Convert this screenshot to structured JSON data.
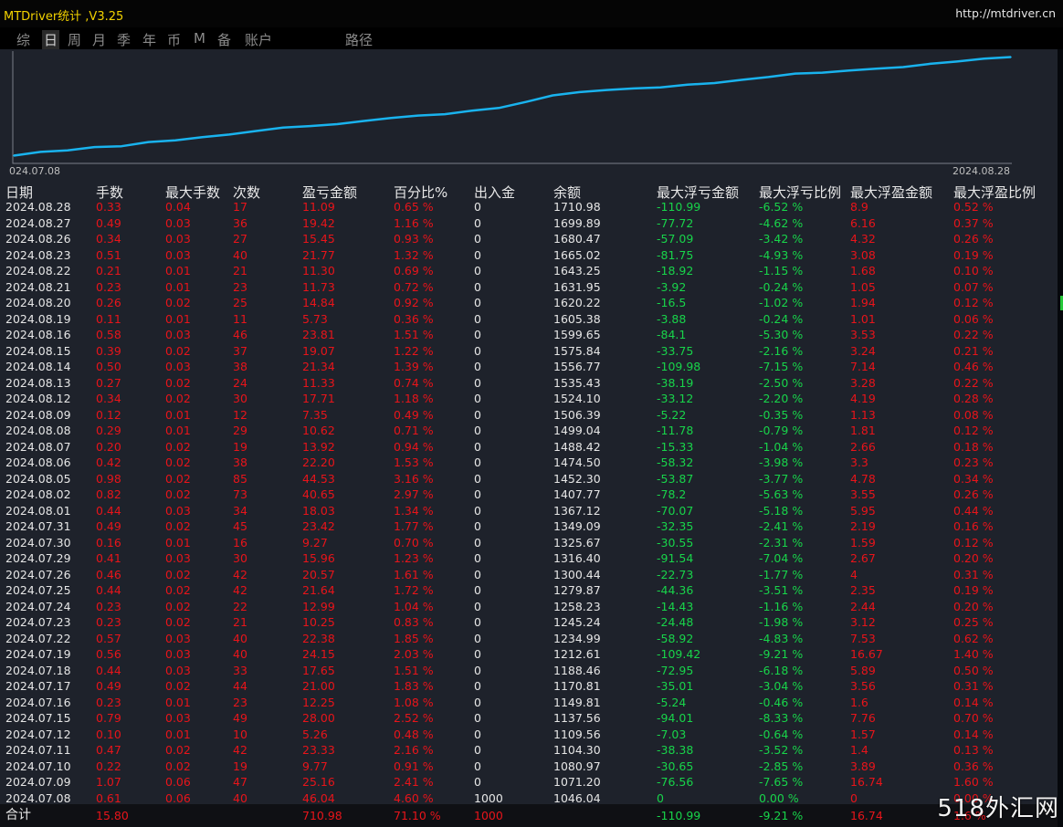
{
  "window": {
    "title": "MTDriver统计 ,V3.25",
    "site": "http://mtdriver.cn"
  },
  "tabs": [
    {
      "label": "综",
      "active": false
    },
    {
      "label": "日",
      "active": true
    },
    {
      "label": "周",
      "active": false
    },
    {
      "label": "月",
      "active": false
    },
    {
      "label": "季",
      "active": false
    },
    {
      "label": "年",
      "active": false
    },
    {
      "label": "币",
      "active": false
    },
    {
      "label": "M",
      "active": false
    },
    {
      "label": "备",
      "active": false
    },
    {
      "label": "账户",
      "active": false
    },
    {
      "label": "路径",
      "active": false
    }
  ],
  "chart_data": {
    "type": "line",
    "x_start_label": "024.07.08",
    "x_end_label": "2024.08.28",
    "line_color": "#19b3ee",
    "x": [
      "2024.07.08",
      "2024.07.09",
      "2024.07.10",
      "2024.07.11",
      "2024.07.12",
      "2024.07.15",
      "2024.07.16",
      "2024.07.17",
      "2024.07.18",
      "2024.07.19",
      "2024.07.22",
      "2024.07.23",
      "2024.07.24",
      "2024.07.25",
      "2024.07.26",
      "2024.07.29",
      "2024.07.30",
      "2024.07.31",
      "2024.08.01",
      "2024.08.02",
      "2024.08.05",
      "2024.08.06",
      "2024.08.07",
      "2024.08.08",
      "2024.08.09",
      "2024.08.12",
      "2024.08.13",
      "2024.08.14",
      "2024.08.15",
      "2024.08.16",
      "2024.08.19",
      "2024.08.20",
      "2024.08.21",
      "2024.08.22",
      "2024.08.23",
      "2024.08.26",
      "2024.08.27",
      "2024.08.28"
    ],
    "values": [
      1046.04,
      1071.2,
      1080.97,
      1104.3,
      1109.56,
      1137.56,
      1149.81,
      1170.81,
      1188.46,
      1212.61,
      1234.99,
      1245.24,
      1258.23,
      1279.87,
      1300.44,
      1316.4,
      1325.67,
      1349.09,
      1367.12,
      1407.77,
      1452.3,
      1474.5,
      1488.42,
      1499.04,
      1506.39,
      1524.1,
      1535.43,
      1556.77,
      1575.84,
      1599.65,
      1605.38,
      1620.22,
      1631.95,
      1643.25,
      1665.02,
      1680.47,
      1699.89,
      1710.98
    ],
    "ylim": [
      1000,
      1720
    ]
  },
  "table": {
    "headers": [
      "日期",
      "手数",
      "最大手数",
      "次数",
      "盈亏金额",
      "百分比%",
      "出入金",
      "余额",
      "最大浮亏金额",
      "最大浮亏比例",
      "最大浮盈金额",
      "最大浮盈比例"
    ],
    "rows": [
      [
        "2024.08.28",
        "0.33",
        "0.04",
        "17",
        "11.09",
        "0.65 %",
        "0",
        "1710.98",
        "-110.99",
        "-6.52 %",
        "8.9",
        "0.52 %"
      ],
      [
        "2024.08.27",
        "0.49",
        "0.03",
        "36",
        "19.42",
        "1.16 %",
        "0",
        "1699.89",
        "-77.72",
        "-4.62 %",
        "6.16",
        "0.37 %"
      ],
      [
        "2024.08.26",
        "0.34",
        "0.03",
        "27",
        "15.45",
        "0.93 %",
        "0",
        "1680.47",
        "-57.09",
        "-3.42 %",
        "4.32",
        "0.26 %"
      ],
      [
        "2024.08.23",
        "0.51",
        "0.03",
        "40",
        "21.77",
        "1.32 %",
        "0",
        "1665.02",
        "-81.75",
        "-4.93 %",
        "3.08",
        "0.19 %"
      ],
      [
        "2024.08.22",
        "0.21",
        "0.01",
        "21",
        "11.30",
        "0.69 %",
        "0",
        "1643.25",
        "-18.92",
        "-1.15 %",
        "1.68",
        "0.10 %"
      ],
      [
        "2024.08.21",
        "0.23",
        "0.01",
        "23",
        "11.73",
        "0.72 %",
        "0",
        "1631.95",
        "-3.92",
        "-0.24 %",
        "1.05",
        "0.07 %"
      ],
      [
        "2024.08.20",
        "0.26",
        "0.02",
        "25",
        "14.84",
        "0.92 %",
        "0",
        "1620.22",
        "-16.5",
        "-1.02 %",
        "1.94",
        "0.12 %"
      ],
      [
        "2024.08.19",
        "0.11",
        "0.01",
        "11",
        "5.73",
        "0.36 %",
        "0",
        "1605.38",
        "-3.88",
        "-0.24 %",
        "1.01",
        "0.06 %"
      ],
      [
        "2024.08.16",
        "0.58",
        "0.03",
        "46",
        "23.81",
        "1.51 %",
        "0",
        "1599.65",
        "-84.1",
        "-5.30 %",
        "3.53",
        "0.22 %"
      ],
      [
        "2024.08.15",
        "0.39",
        "0.02",
        "37",
        "19.07",
        "1.22 %",
        "0",
        "1575.84",
        "-33.75",
        "-2.16 %",
        "3.24",
        "0.21 %"
      ],
      [
        "2024.08.14",
        "0.50",
        "0.03",
        "38",
        "21.34",
        "1.39 %",
        "0",
        "1556.77",
        "-109.98",
        "-7.15 %",
        "7.14",
        "0.46 %"
      ],
      [
        "2024.08.13",
        "0.27",
        "0.02",
        "24",
        "11.33",
        "0.74 %",
        "0",
        "1535.43",
        "-38.19",
        "-2.50 %",
        "3.28",
        "0.22 %"
      ],
      [
        "2024.08.12",
        "0.34",
        "0.02",
        "30",
        "17.71",
        "1.18 %",
        "0",
        "1524.10",
        "-33.12",
        "-2.20 %",
        "4.19",
        "0.28 %"
      ],
      [
        "2024.08.09",
        "0.12",
        "0.01",
        "12",
        "7.35",
        "0.49 %",
        "0",
        "1506.39",
        "-5.22",
        "-0.35 %",
        "1.13",
        "0.08 %"
      ],
      [
        "2024.08.08",
        "0.29",
        "0.01",
        "29",
        "10.62",
        "0.71 %",
        "0",
        "1499.04",
        "-11.78",
        "-0.79 %",
        "1.81",
        "0.12 %"
      ],
      [
        "2024.08.07",
        "0.20",
        "0.02",
        "19",
        "13.92",
        "0.94 %",
        "0",
        "1488.42",
        "-15.33",
        "-1.04 %",
        "2.66",
        "0.18 %"
      ],
      [
        "2024.08.06",
        "0.42",
        "0.02",
        "38",
        "22.20",
        "1.53 %",
        "0",
        "1474.50",
        "-58.32",
        "-3.98 %",
        "3.3",
        "0.23 %"
      ],
      [
        "2024.08.05",
        "0.98",
        "0.02",
        "85",
        "44.53",
        "3.16 %",
        "0",
        "1452.30",
        "-53.87",
        "-3.77 %",
        "4.78",
        "0.34 %"
      ],
      [
        "2024.08.02",
        "0.82",
        "0.02",
        "73",
        "40.65",
        "2.97 %",
        "0",
        "1407.77",
        "-78.2",
        "-5.63 %",
        "3.55",
        "0.26 %"
      ],
      [
        "2024.08.01",
        "0.44",
        "0.03",
        "34",
        "18.03",
        "1.34 %",
        "0",
        "1367.12",
        "-70.07",
        "-5.18 %",
        "5.95",
        "0.44 %"
      ],
      [
        "2024.07.31",
        "0.49",
        "0.02",
        "45",
        "23.42",
        "1.77 %",
        "0",
        "1349.09",
        "-32.35",
        "-2.41 %",
        "2.19",
        "0.16 %"
      ],
      [
        "2024.07.30",
        "0.16",
        "0.01",
        "16",
        "9.27",
        "0.70 %",
        "0",
        "1325.67",
        "-30.55",
        "-2.31 %",
        "1.59",
        "0.12 %"
      ],
      [
        "2024.07.29",
        "0.41",
        "0.03",
        "30",
        "15.96",
        "1.23 %",
        "0",
        "1316.40",
        "-91.54",
        "-7.04 %",
        "2.67",
        "0.20 %"
      ],
      [
        "2024.07.26",
        "0.46",
        "0.02",
        "42",
        "20.57",
        "1.61 %",
        "0",
        "1300.44",
        "-22.73",
        "-1.77 %",
        "4",
        "0.31 %"
      ],
      [
        "2024.07.25",
        "0.44",
        "0.02",
        "42",
        "21.64",
        "1.72 %",
        "0",
        "1279.87",
        "-44.36",
        "-3.51 %",
        "2.35",
        "0.19 %"
      ],
      [
        "2024.07.24",
        "0.23",
        "0.02",
        "22",
        "12.99",
        "1.04 %",
        "0",
        "1258.23",
        "-14.43",
        "-1.16 %",
        "2.44",
        "0.20 %"
      ],
      [
        "2024.07.23",
        "0.23",
        "0.02",
        "21",
        "10.25",
        "0.83 %",
        "0",
        "1245.24",
        "-24.48",
        "-1.98 %",
        "3.12",
        "0.25 %"
      ],
      [
        "2024.07.22",
        "0.57",
        "0.03",
        "40",
        "22.38",
        "1.85 %",
        "0",
        "1234.99",
        "-58.92",
        "-4.83 %",
        "7.53",
        "0.62 %"
      ],
      [
        "2024.07.19",
        "0.56",
        "0.03",
        "40",
        "24.15",
        "2.03 %",
        "0",
        "1212.61",
        "-109.42",
        "-9.21 %",
        "16.67",
        "1.40 %"
      ],
      [
        "2024.07.18",
        "0.44",
        "0.03",
        "33",
        "17.65",
        "1.51 %",
        "0",
        "1188.46",
        "-72.95",
        "-6.18 %",
        "5.89",
        "0.50 %"
      ],
      [
        "2024.07.17",
        "0.49",
        "0.02",
        "44",
        "21.00",
        "1.83 %",
        "0",
        "1170.81",
        "-35.01",
        "-3.04 %",
        "3.56",
        "0.31 %"
      ],
      [
        "2024.07.16",
        "0.23",
        "0.01",
        "23",
        "12.25",
        "1.08 %",
        "0",
        "1149.81",
        "-5.24",
        "-0.46 %",
        "1.6",
        "0.14 %"
      ],
      [
        "2024.07.15",
        "0.79",
        "0.03",
        "49",
        "28.00",
        "2.52 %",
        "0",
        "1137.56",
        "-94.01",
        "-8.33 %",
        "7.76",
        "0.70 %"
      ],
      [
        "2024.07.12",
        "0.10",
        "0.01",
        "10",
        "5.26",
        "0.48 %",
        "0",
        "1109.56",
        "-7.03",
        "-0.64 %",
        "1.57",
        "0.14 %"
      ],
      [
        "2024.07.11",
        "0.47",
        "0.02",
        "42",
        "23.33",
        "2.16 %",
        "0",
        "1104.30",
        "-38.38",
        "-3.52 %",
        "1.4",
        "0.13 %"
      ],
      [
        "2024.07.10",
        "0.22",
        "0.02",
        "19",
        "9.77",
        "0.91 %",
        "0",
        "1080.97",
        "-30.65",
        "-2.85 %",
        "3.89",
        "0.36 %"
      ],
      [
        "2024.07.09",
        "1.07",
        "0.06",
        "47",
        "25.16",
        "2.41 %",
        "0",
        "1071.20",
        "-76.56",
        "-7.65 %",
        "16.74",
        "1.60 %"
      ],
      [
        "2024.07.08",
        "0.61",
        "0.06",
        "40",
        "46.04",
        "4.60 %",
        "1000",
        "1046.04",
        "0",
        "0.00 %",
        "0",
        "0.00 %"
      ]
    ],
    "total": [
      "合计",
      "15.80",
      "",
      "",
      "710.98",
      "71.10 %",
      "1000",
      "",
      "-110.99",
      "-9.21 %",
      "16.74",
      "1.6 %"
    ]
  },
  "watermark": "518外汇网",
  "colors": {
    "title": "#f2d200",
    "line": "#19b3ee",
    "negative": "#e8141a",
    "positive": "#18d44a",
    "panel": "#1e222b"
  }
}
